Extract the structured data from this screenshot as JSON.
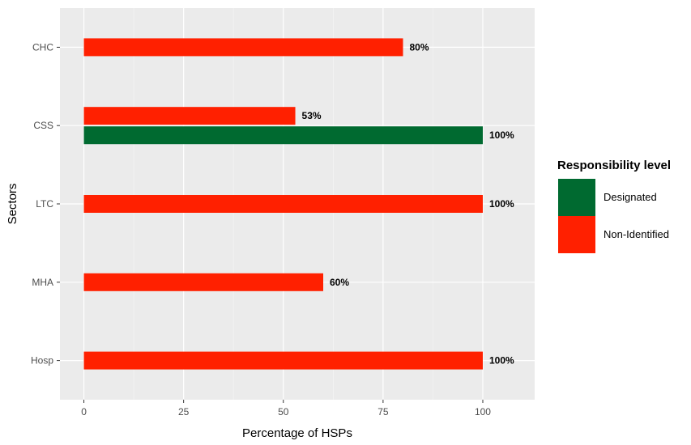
{
  "chart_data": {
    "type": "bar",
    "orientation": "horizontal",
    "categories": [
      "CHC",
      "CSS",
      "LTC",
      "MHA",
      "Hosp"
    ],
    "series": [
      {
        "name": "Designated",
        "color": "#006a30",
        "values": [
          null,
          100,
          null,
          null,
          null
        ],
        "labels": [
          null,
          "100%",
          null,
          null,
          null
        ]
      },
      {
        "name": "Non-Identified",
        "color": "#ff2000",
        "values": [
          80,
          53,
          100,
          60,
          100
        ],
        "labels": [
          "80%",
          "53%",
          "100%",
          "60%",
          "100%"
        ]
      }
    ],
    "xlabel": "Percentage of HSPs",
    "ylabel": "Sectors",
    "xlim": [
      -6,
      113
    ],
    "xticks": [
      "0",
      "25",
      "50",
      "75",
      "100"
    ],
    "grid": true,
    "panel_background": "#ebebeb",
    "legend": {
      "title": "Responsibility level",
      "position": "right"
    }
  }
}
